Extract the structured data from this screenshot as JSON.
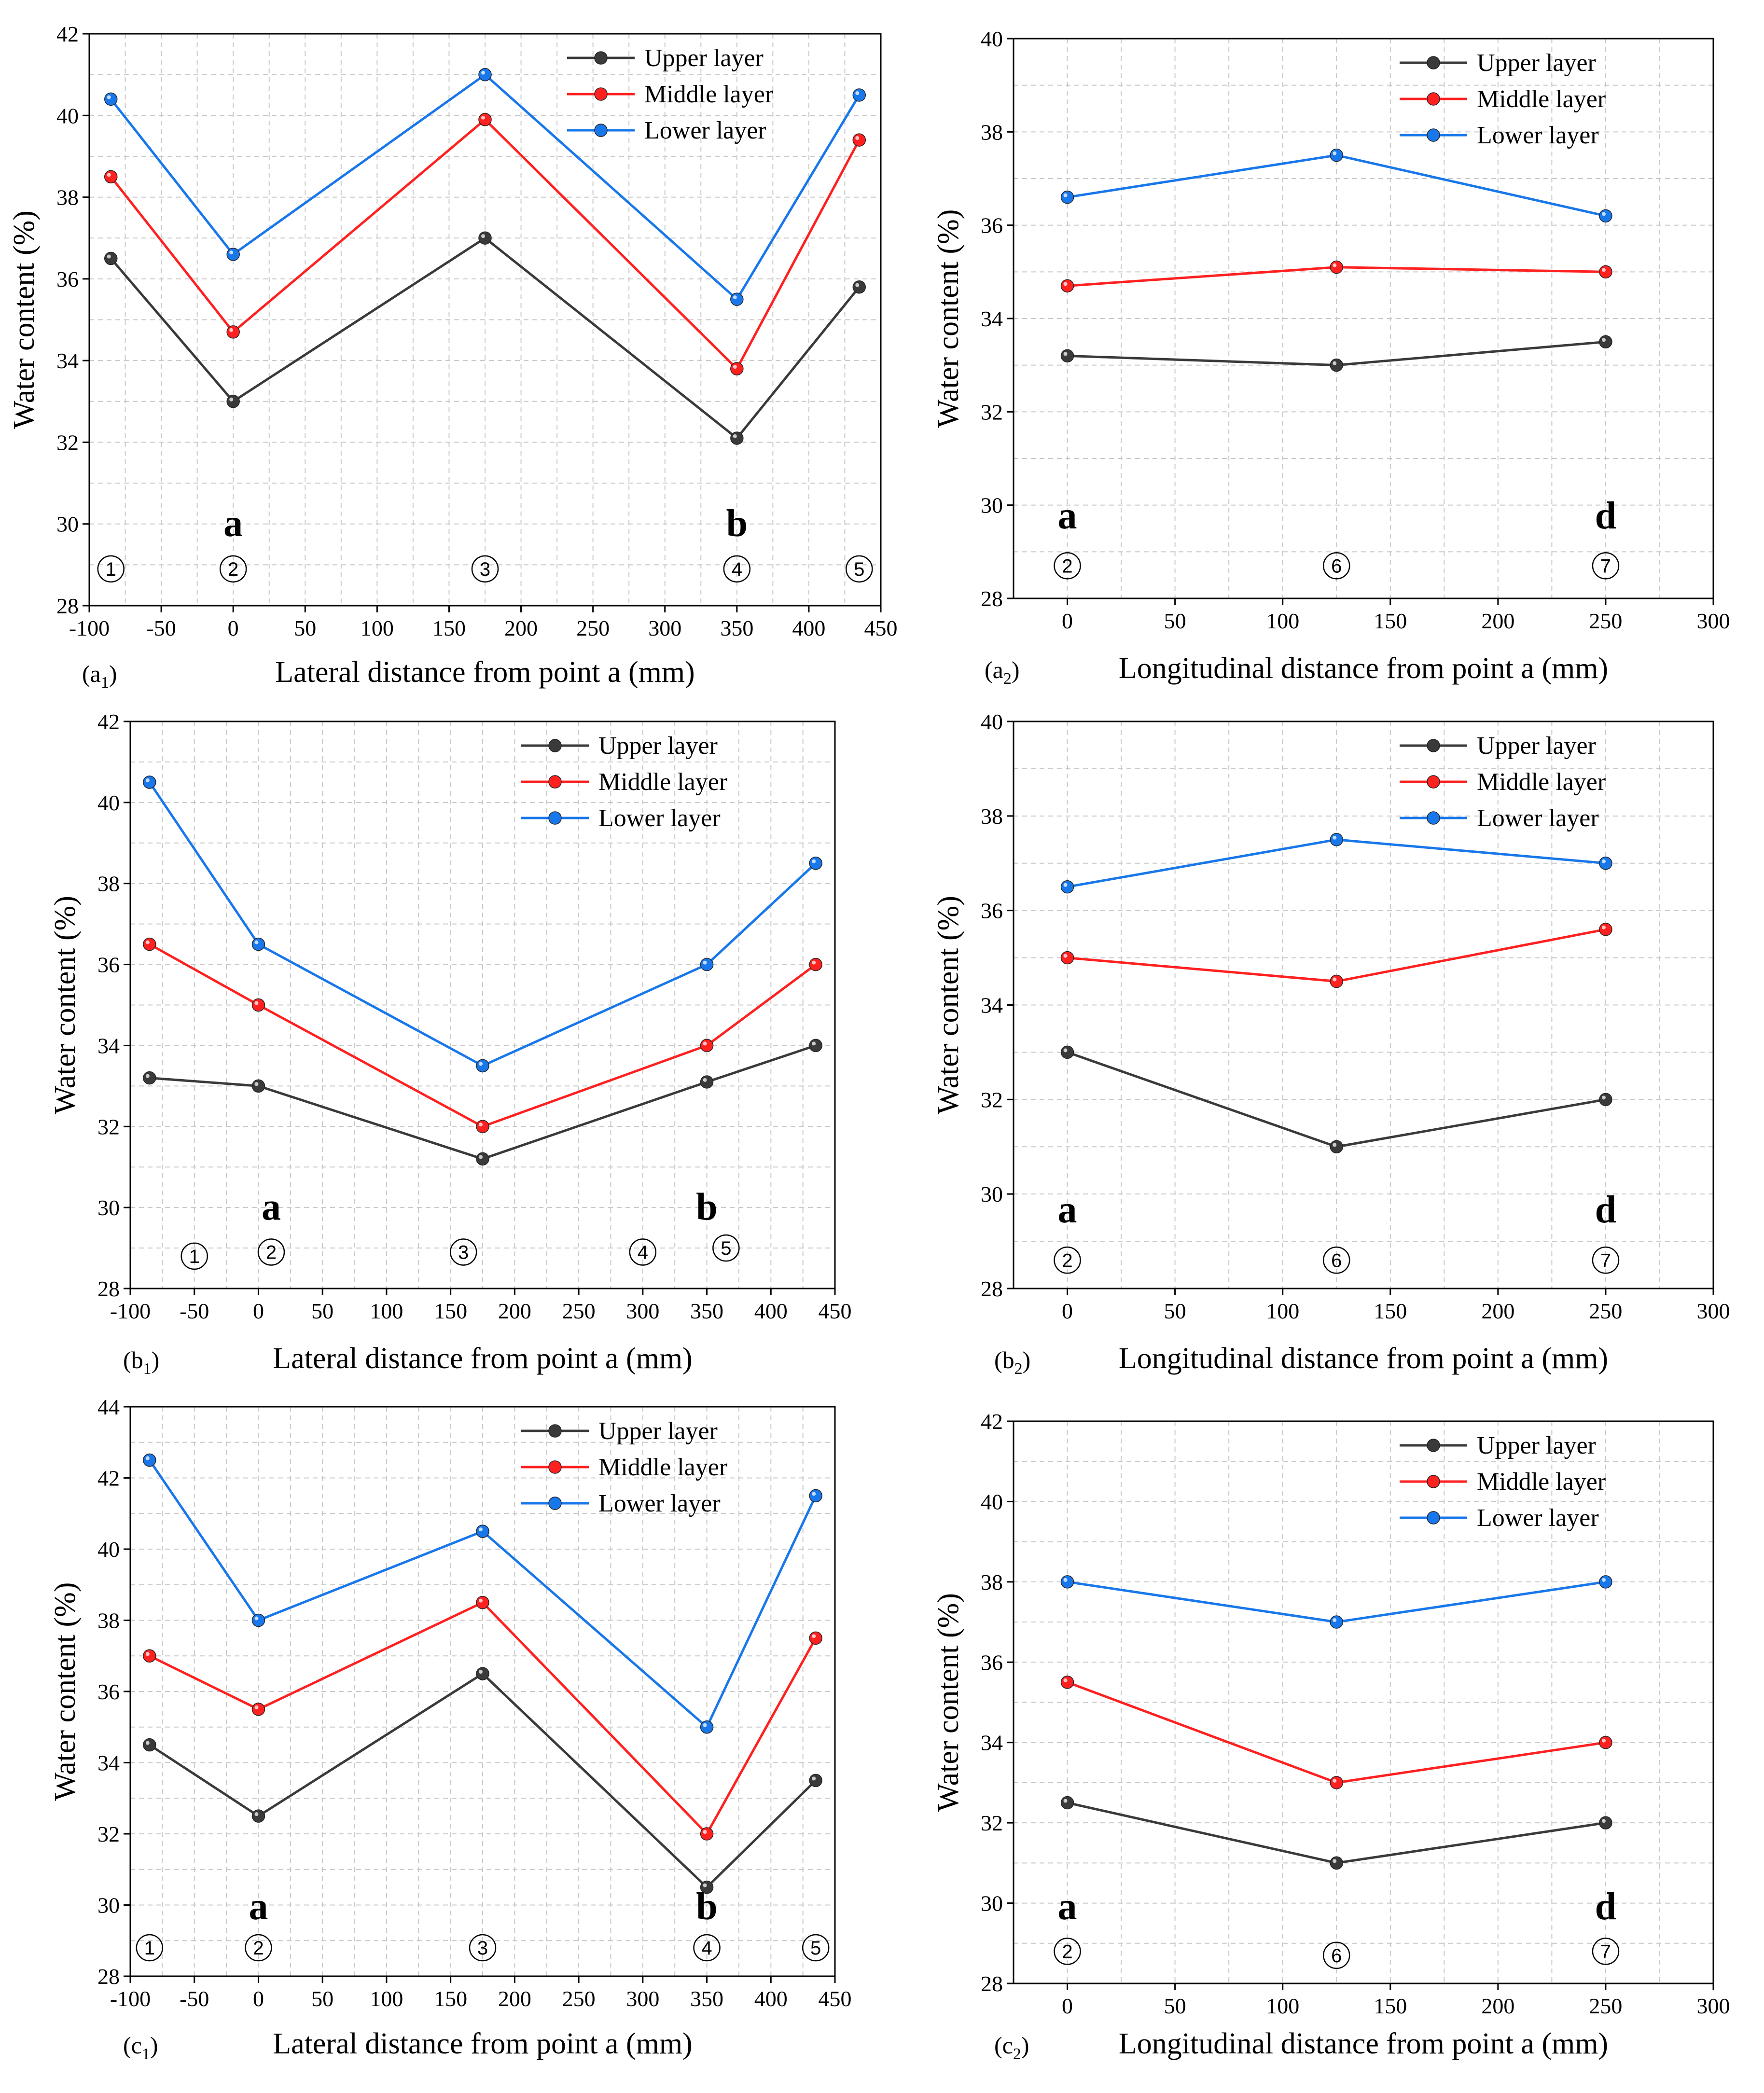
{
  "legend_labels": [
    "Upper layer",
    "Middle layer",
    "Lower layer"
  ],
  "colors": {
    "upper": "#3a3a3a",
    "middle": "#ff2020",
    "lower": "#1877ea"
  },
  "chart_data": [
    {
      "type": "line",
      "panel_label": "a",
      "panel_subscript": "1",
      "xlabel": "Lateral distance from point a (mm)",
      "ylabel": "Water content (%)",
      "xlim": [
        -100,
        450
      ],
      "ylim": [
        28,
        42
      ],
      "xticks": [
        -100,
        -50,
        0,
        50,
        100,
        150,
        200,
        250,
        300,
        350,
        400,
        450
      ],
      "xtick_labels": [
        "-100",
        "-50",
        "0",
        "50",
        "100",
        "150",
        "200",
        "250",
        "300",
        "350",
        "400",
        "450"
      ],
      "yticks": [
        28,
        30,
        32,
        34,
        36,
        38,
        40,
        42
      ],
      "x": [
        -85,
        0,
        175,
        350,
        435
      ],
      "series": [
        {
          "name": "Upper layer",
          "values": [
            36.5,
            33.0,
            37.0,
            32.1,
            35.8
          ]
        },
        {
          "name": "Middle layer",
          "values": [
            38.5,
            34.7,
            39.9,
            33.8,
            39.4
          ]
        },
        {
          "name": "Lower layer",
          "values": [
            40.4,
            36.6,
            41.0,
            35.5,
            40.5
          ]
        }
      ],
      "point_markers": [
        {
          "label": "1",
          "x": -85,
          "y": 28.9
        },
        {
          "label": "2",
          "x": 0,
          "y": 28.9
        },
        {
          "label": "3",
          "x": 175,
          "y": 28.9
        },
        {
          "label": "4",
          "x": 350,
          "y": 28.9
        },
        {
          "label": "5",
          "x": 435,
          "y": 28.9
        }
      ],
      "annotations": [
        {
          "text": "a",
          "x": 0,
          "y": 29.7
        },
        {
          "text": "b",
          "x": 350,
          "y": 29.7
        }
      ]
    },
    {
      "type": "line",
      "panel_label": "a",
      "panel_subscript": "2",
      "xlabel": "Longitudinal distance from point a (mm)",
      "ylabel": "Water content (%)",
      "xlim": [
        -25,
        300
      ],
      "ylim": [
        28,
        40
      ],
      "xticks": [
        0,
        50,
        100,
        150,
        200,
        250,
        300
      ],
      "xtick_labels": [
        "0",
        "50",
        "100",
        "150",
        "200",
        "250",
        "300"
      ],
      "yticks": [
        28,
        30,
        32,
        34,
        36,
        38,
        40
      ],
      "x": [
        0,
        125,
        250
      ],
      "series": [
        {
          "name": "Upper layer",
          "values": [
            33.2,
            33.0,
            33.5
          ]
        },
        {
          "name": "Middle layer",
          "values": [
            34.7,
            35.1,
            35.0
          ]
        },
        {
          "name": "Lower layer",
          "values": [
            36.6,
            37.5,
            36.2
          ]
        }
      ],
      "point_markers": [
        {
          "label": "2",
          "x": 0,
          "y": 28.7
        },
        {
          "label": "6",
          "x": 125,
          "y": 28.7
        },
        {
          "label": "7",
          "x": 250,
          "y": 28.7
        }
      ],
      "annotations": [
        {
          "text": "a",
          "x": 0,
          "y": 29.5
        },
        {
          "text": "d",
          "x": 250,
          "y": 29.5
        }
      ]
    },
    {
      "type": "line",
      "panel_label": "b",
      "panel_subscript": "1",
      "xlabel": "Lateral distance from point a (mm)",
      "ylabel": "Water content (%)",
      "xlim": [
        -100,
        450
      ],
      "ylim": [
        28,
        42
      ],
      "xticks": [
        -100,
        -50,
        0,
        50,
        100,
        150,
        200,
        250,
        300,
        350,
        400,
        450
      ],
      "xtick_labels": [
        "-100",
        "-50",
        "0",
        "50",
        "100",
        "150",
        "200",
        "250",
        "300",
        "350",
        "400",
        "450"
      ],
      "yticks": [
        28,
        30,
        32,
        34,
        36,
        38,
        40,
        42
      ],
      "x": [
        -85,
        0,
        175,
        350,
        435
      ],
      "series": [
        {
          "name": "Upper layer",
          "values": [
            33.2,
            33.0,
            31.2,
            33.1,
            34.0
          ]
        },
        {
          "name": "Middle layer",
          "values": [
            36.5,
            35.0,
            32.0,
            34.0,
            36.0
          ]
        },
        {
          "name": "Lower layer",
          "values": [
            40.5,
            36.5,
            33.5,
            36.0,
            38.5
          ]
        }
      ],
      "point_markers": [
        {
          "label": "1",
          "x": -50,
          "y": 28.8
        },
        {
          "label": "2",
          "x": 10,
          "y": 28.9
        },
        {
          "label": "3",
          "x": 160,
          "y": 28.9
        },
        {
          "label": "4",
          "x": 300,
          "y": 28.9
        },
        {
          "label": "5",
          "x": 365,
          "y": 29.0
        }
      ],
      "annotations": [
        {
          "text": "a",
          "x": 10,
          "y": 29.7
        },
        {
          "text": "b",
          "x": 350,
          "y": 29.7
        }
      ]
    },
    {
      "type": "line",
      "panel_label": "b",
      "panel_subscript": "2",
      "xlabel": "Longitudinal distance from point a (mm)",
      "ylabel": "Water content (%)",
      "xlim": [
        -25,
        300
      ],
      "ylim": [
        28,
        40
      ],
      "xticks": [
        0,
        50,
        100,
        150,
        200,
        250,
        300
      ],
      "xtick_labels": [
        "0",
        "50",
        "100",
        "150",
        "200",
        "250",
        "300"
      ],
      "yticks": [
        28,
        30,
        32,
        34,
        36,
        38,
        40
      ],
      "x": [
        0,
        125,
        250
      ],
      "series": [
        {
          "name": "Upper layer",
          "values": [
            33.0,
            31.0,
            32.0
          ]
        },
        {
          "name": "Middle layer",
          "values": [
            35.0,
            34.5,
            35.6
          ]
        },
        {
          "name": "Lower layer",
          "values": [
            36.5,
            37.5,
            37.0
          ]
        }
      ],
      "point_markers": [
        {
          "label": "2",
          "x": 0,
          "y": 28.6
        },
        {
          "label": "6",
          "x": 125,
          "y": 28.6
        },
        {
          "label": "7",
          "x": 250,
          "y": 28.6
        }
      ],
      "annotations": [
        {
          "text": "a",
          "x": 0,
          "y": 29.4
        },
        {
          "text": "d",
          "x": 250,
          "y": 29.4
        }
      ]
    },
    {
      "type": "line",
      "panel_label": "c",
      "panel_subscript": "1",
      "xlabel": "Lateral distance from point a (mm)",
      "ylabel": "Water content (%)",
      "xlim": [
        -100,
        450
      ],
      "ylim": [
        28,
        44
      ],
      "xticks": [
        -100,
        -50,
        0,
        50,
        100,
        150,
        200,
        250,
        300,
        350,
        400,
        450
      ],
      "xtick_labels": [
        "-100",
        "-50",
        "0",
        "50",
        "100",
        "150",
        "200",
        "250",
        "300",
        "350",
        "400",
        "450"
      ],
      "yticks": [
        28,
        30,
        32,
        34,
        36,
        38,
        40,
        42,
        44
      ],
      "x": [
        -85,
        0,
        175,
        350,
        435
      ],
      "series": [
        {
          "name": "Upper layer",
          "values": [
            34.5,
            32.5,
            36.5,
            30.5,
            33.5
          ]
        },
        {
          "name": "Middle layer",
          "values": [
            37.0,
            35.5,
            38.5,
            32.0,
            37.5
          ]
        },
        {
          "name": "Lower layer",
          "values": [
            42.5,
            38.0,
            40.5,
            35.0,
            41.5
          ]
        }
      ],
      "point_markers": [
        {
          "label": "1",
          "x": -85,
          "y": 28.8
        },
        {
          "label": "2",
          "x": 0,
          "y": 28.8
        },
        {
          "label": "3",
          "x": 175,
          "y": 28.8
        },
        {
          "label": "4",
          "x": 350,
          "y": 28.8
        },
        {
          "label": "5",
          "x": 435,
          "y": 28.8
        }
      ],
      "annotations": [
        {
          "text": "a",
          "x": 0,
          "y": 29.6
        },
        {
          "text": "b",
          "x": 350,
          "y": 29.6
        }
      ]
    },
    {
      "type": "line",
      "panel_label": "c",
      "panel_subscript": "2",
      "xlabel": "Longitudinal distance from point a (mm)",
      "ylabel": "Water content (%)",
      "xlim": [
        -25,
        300
      ],
      "ylim": [
        28,
        42
      ],
      "xticks": [
        0,
        50,
        100,
        150,
        200,
        250,
        300
      ],
      "xtick_labels": [
        "0",
        "50",
        "100",
        "150",
        "200",
        "250",
        "300"
      ],
      "yticks": [
        28,
        30,
        32,
        34,
        36,
        38,
        40,
        42
      ],
      "x": [
        0,
        125,
        250
      ],
      "series": [
        {
          "name": "Upper layer",
          "values": [
            32.5,
            31.0,
            32.0
          ]
        },
        {
          "name": "Middle layer",
          "values": [
            35.5,
            33.0,
            34.0
          ]
        },
        {
          "name": "Lower layer",
          "values": [
            38.0,
            37.0,
            38.0
          ]
        }
      ],
      "point_markers": [
        {
          "label": "2",
          "x": 0,
          "y": 28.8
        },
        {
          "label": "6",
          "x": 125,
          "y": 28.7
        },
        {
          "label": "7",
          "x": 250,
          "y": 28.8
        }
      ],
      "annotations": [
        {
          "text": "a",
          "x": 0,
          "y": 29.6
        },
        {
          "text": "d",
          "x": 250,
          "y": 29.6
        }
      ]
    }
  ]
}
